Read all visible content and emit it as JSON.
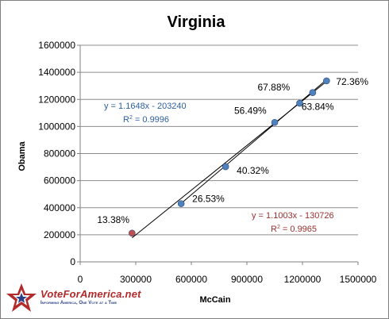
{
  "chart_data": {
    "type": "scatter",
    "title": "Virginia",
    "xlabel": "McCain",
    "ylabel": "Obama",
    "xlim": [
      0,
      1500000
    ],
    "ylim": [
      0,
      1600000
    ],
    "x_ticks": [
      0,
      300000,
      600000,
      900000,
      1200000,
      1500000
    ],
    "y_ticks": [
      0,
      200000,
      400000,
      600000,
      800000,
      1000000,
      1200000,
      1400000,
      1600000
    ],
    "x_tick_labels": [
      "0",
      "300000",
      "600000",
      "900000",
      "1200000",
      "1500000"
    ],
    "y_tick_labels": [
      "0",
      "200000",
      "400000",
      "600000",
      "800000",
      "1000000",
      "1200000",
      "1400000",
      "1600000"
    ],
    "grid": {
      "horizontal": true,
      "vertical": false
    },
    "points": [
      {
        "x": 280000,
        "y": 212000,
        "label": "13.38%",
        "color": "#c0504d"
      },
      {
        "x": 545000,
        "y": 430000,
        "label": "26.53%",
        "color": "#4f81bd"
      },
      {
        "x": 785000,
        "y": 703000,
        "label": "40.32%",
        "color": "#4f81bd"
      },
      {
        "x": 1050000,
        "y": 1030000,
        "label": "56.49%",
        "color": "#4f81bd"
      },
      {
        "x": 1185000,
        "y": 1172000,
        "label": "67.88%",
        "color": "#4f81bd"
      },
      {
        "x": 1255000,
        "y": 1250000,
        "label": "63.84%",
        "color": "#4f81bd"
      },
      {
        "x": 1330000,
        "y": 1337000,
        "label": "72.36%",
        "color": "#4f81bd"
      }
    ],
    "trendlines": [
      {
        "slope": 1.1648,
        "intercept": -203240,
        "x_range": [
          545000,
          1330000
        ],
        "equation": "y = 1.1648x - 203240",
        "r2_prefix": "R",
        "r2_value": " = 0.9996",
        "color": "#2e5fa0"
      },
      {
        "slope": 1.1003,
        "intercept": -130726,
        "x_range": [
          280000,
          1330000
        ],
        "equation": "y = 1.1003x - 130726",
        "r2_prefix": "R",
        "r2_value": " = 0.9965",
        "color": "#9b2f2f"
      }
    ]
  },
  "logo": {
    "name": "VoteForAmerica.net",
    "tagline": "Informing America, One Vote at a Time"
  }
}
